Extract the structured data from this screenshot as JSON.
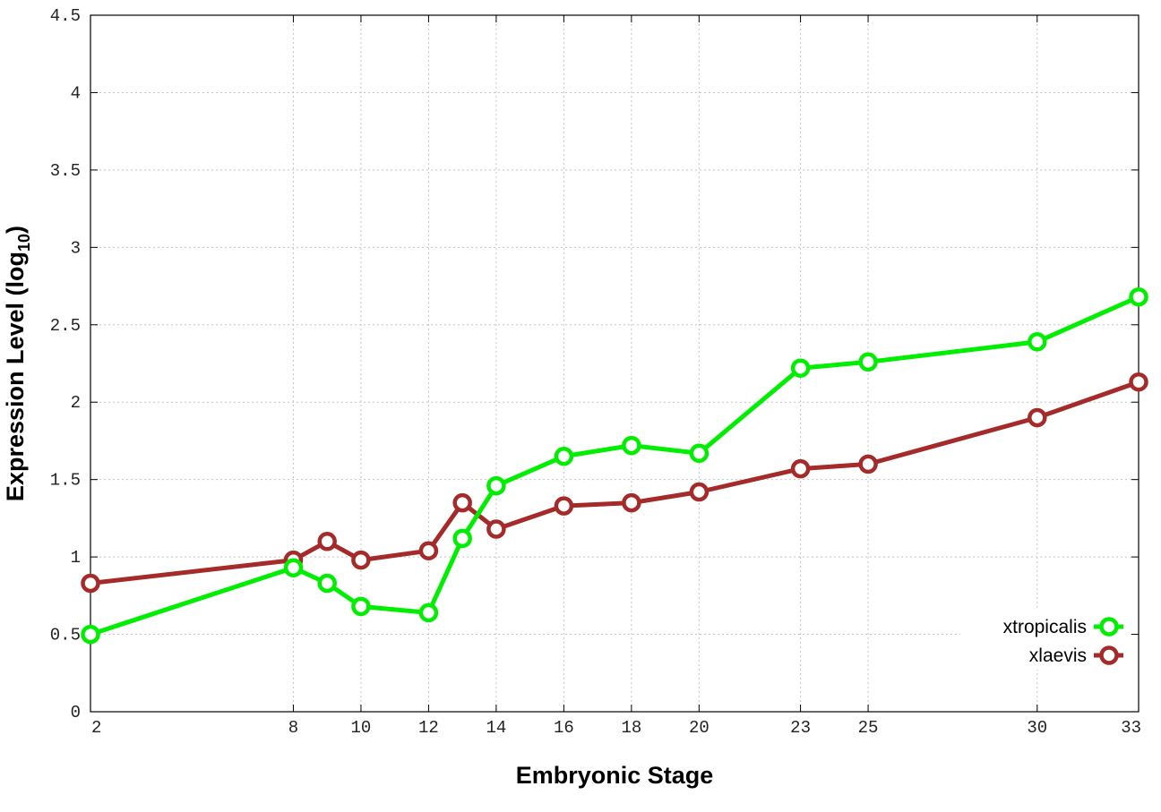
{
  "chart_data": {
    "type": "line",
    "title": "",
    "xlabel": "Embryonic Stage",
    "ylabel_main": "Expression Level (log",
    "ylabel_sub": "10",
    "ylabel_close": ")",
    "x": [
      2,
      8,
      9,
      10,
      12,
      13,
      14,
      16,
      18,
      20,
      23,
      25,
      30,
      33
    ],
    "x_ticks": [
      "2",
      "8",
      "10",
      "12",
      "14",
      "16",
      "18",
      "20",
      "23",
      "25",
      "30",
      "33"
    ],
    "y_ticks": [
      "0",
      "0.5",
      "1",
      "1.5",
      "2",
      "2.5",
      "3",
      "3.5",
      "4",
      "4.5"
    ],
    "ylim": [
      0,
      4.5
    ],
    "grid": true,
    "legend_position": "bottom-right",
    "series": [
      {
        "name": "xtropicalis",
        "color": "#00ee00",
        "values": [
          0.5,
          0.93,
          0.83,
          0.68,
          0.64,
          1.12,
          1.46,
          1.65,
          1.72,
          1.67,
          2.22,
          2.26,
          2.39,
          2.68
        ]
      },
      {
        "name": "xlaevis",
        "color": "#a52a2a",
        "values": [
          0.83,
          0.98,
          1.1,
          0.98,
          1.04,
          1.35,
          1.18,
          1.33,
          1.35,
          1.42,
          1.57,
          1.6,
          1.9,
          2.13
        ]
      }
    ]
  }
}
